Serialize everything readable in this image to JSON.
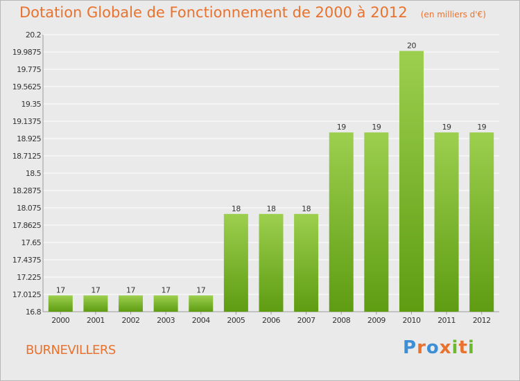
{
  "header": {
    "title": "Dotation Globale de Fonctionnement de 2000 à 2012",
    "subtitle": "(en milliers d'€)"
  },
  "footer": {
    "commune": "BURNEVILLERS",
    "logo_text": "Proxiti"
  },
  "colors": {
    "title": "#e8722e",
    "bar_top": "#9ccf4e",
    "bar_bottom": "#5e9c12",
    "background": "#eaeaea",
    "grid": "#ffffff",
    "logo_letters": [
      "#3c8fd6",
      "#e8722e",
      "#3c8fd6",
      "#e8722e",
      "#6cb82e",
      "#e8722e",
      "#6cb82e"
    ]
  },
  "chart_data": {
    "type": "bar",
    "title": "Dotation Globale de Fonctionnement de 2000 à 2012",
    "subtitle": "(en milliers d'€)",
    "categories": [
      "2000",
      "2001",
      "2002",
      "2003",
      "2004",
      "2005",
      "2006",
      "2007",
      "2008",
      "2009",
      "2010",
      "2011",
      "2012"
    ],
    "values": [
      17,
      17,
      17,
      17,
      17,
      18,
      18,
      18,
      19,
      19,
      20,
      19,
      19
    ],
    "data_labels": [
      "17",
      "17",
      "17",
      "17",
      "17",
      "18",
      "18",
      "18",
      "19",
      "19",
      "20",
      "19",
      "19"
    ],
    "ylim": [
      16.8,
      20.2
    ],
    "yticks": [
      "16.8",
      "17.0125",
      "17.225",
      "17.4375",
      "17.65",
      "17.8625",
      "18.075",
      "18.2875",
      "18.5",
      "18.7125",
      "18.925",
      "19.1375",
      "19.35",
      "19.5625",
      "19.775",
      "19.9875",
      "20.2"
    ],
    "grid": true,
    "legend": "none"
  }
}
